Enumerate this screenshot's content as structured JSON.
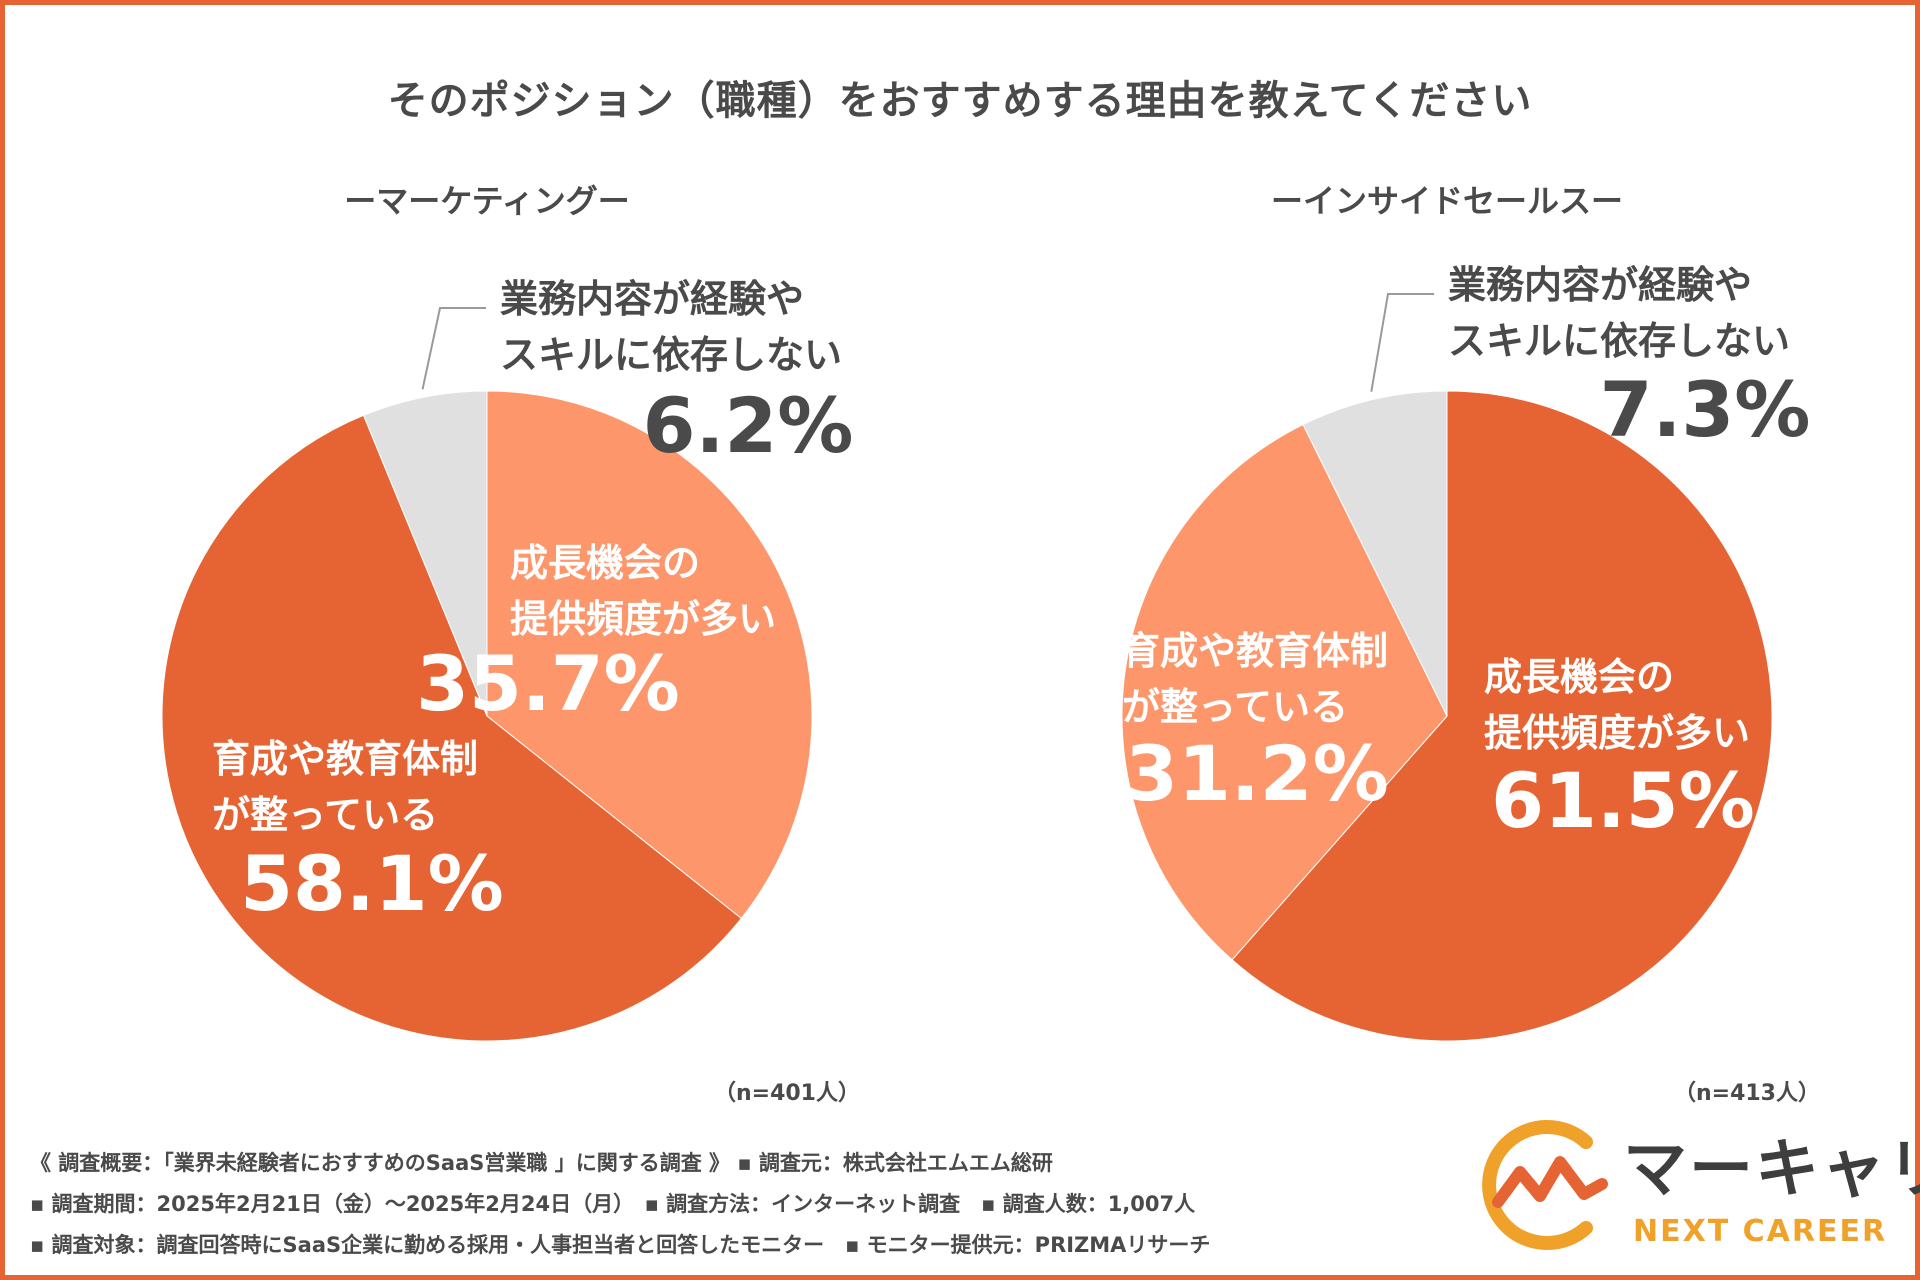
{
  "title": "そのポジション（職種）をおすすめする理由を教えてください",
  "colors": {
    "frame": "#e66433",
    "dark_orange": "#e66433",
    "light_orange": "#fd966b",
    "gray": "#e0e0e0",
    "text": "#4a4a4a",
    "logo_orange": "#f0a12a"
  },
  "chart_data": [
    {
      "type": "pie",
      "title": "ーマーケティングー",
      "n_label": "（n=401人）",
      "slices": [
        {
          "label_lines": [
            "成長機会の",
            "提供頻度が多い"
          ],
          "value": 35.7,
          "value_label": "35.7%",
          "color": "#fd966b"
        },
        {
          "label_lines": [
            "育成や教育体制",
            "が整っている"
          ],
          "value": 58.1,
          "value_label": "58.1%",
          "color": "#e66433"
        },
        {
          "label_lines": [
            "業務内容が経験や",
            "スキルに依存しない"
          ],
          "value": 6.2,
          "value_label": "6.2%",
          "color": "#e0e0e0"
        }
      ]
    },
    {
      "type": "pie",
      "title": "ーインサイドセールスー",
      "n_label": "（n=413人）",
      "slices": [
        {
          "label_lines": [
            "成長機会の",
            "提供頻度が多い"
          ],
          "value": 61.5,
          "value_label": "61.5%",
          "color": "#e66433"
        },
        {
          "label_lines": [
            "育成や教育体制",
            "が整っている"
          ],
          "value": 31.2,
          "value_label": "31.2%",
          "color": "#fd966b"
        },
        {
          "label_lines": [
            "業務内容が経験や",
            "スキルに依存しない"
          ],
          "value": 7.3,
          "value_label": "7.3%",
          "color": "#e0e0e0"
        }
      ]
    }
  ],
  "footnotes": {
    "line1": "《 調査概要：「業界未経験者におすすめのSaaS営業職 」に関する調査 》 ▪ 調査元：株式会社エムエム総研",
    "line2": "▪ 調査期間：2025年2月21日（金）〜2025年2月24日（月）　▪ 調査方法：インターネット調査　▪ 調査人数：1,007人",
    "line3": "▪ 調査対象：調査回答時にSaaS企業に勤める採用・人事担当者と回答したモニター　▪ モニター提供元：PRIZMAリサーチ"
  },
  "logo": {
    "main": "マーキャリ",
    "sub": "NEXT CAREER"
  }
}
